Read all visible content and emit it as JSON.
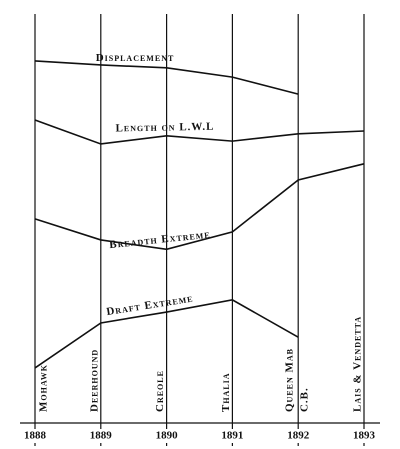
{
  "chart_data": {
    "type": "line",
    "categories": [
      "1888",
      "1889",
      "1890",
      "1891",
      "1892",
      "1893"
    ],
    "vessels": [
      [
        "Mohawk"
      ],
      [
        "Deerhound"
      ],
      [
        "Creole"
      ],
      [
        "Thalia"
      ],
      [
        "Queen Mab",
        "C.B."
      ],
      [
        "Lais & Vendetta"
      ]
    ],
    "ylim": [
      0,
      100
    ],
    "series": [
      {
        "name": "Displacement",
        "color": "#111111",
        "values": [
          89.4,
          88.4,
          87.7,
          85.4,
          81.2,
          null
        ]
      },
      {
        "name": "Length on L.W.L",
        "color": "#111111",
        "values": [
          74.8,
          68.9,
          70.9,
          69.6,
          71.4,
          72.1
        ]
      },
      {
        "name": "Breadth Extreme",
        "color": "#111111",
        "values": [
          50.4,
          45.2,
          42.9,
          47.2,
          60.0,
          64.0
        ]
      },
      {
        "name": "Draft Extreme",
        "color": "#111111",
        "values": [
          13.6,
          24.7,
          27.4,
          30.4,
          21.2,
          null
        ]
      }
    ]
  }
}
